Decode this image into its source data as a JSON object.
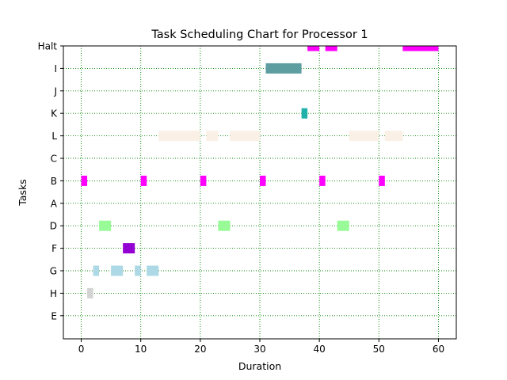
{
  "chart_data": {
    "type": "gantt",
    "title": "Task Scheduling Chart for Processor 1",
    "xlabel": "Duration",
    "ylabel": "Tasks",
    "xlim": [
      -3,
      63
    ],
    "xticks": [
      0,
      10,
      20,
      30,
      40,
      50,
      60
    ],
    "grid": true,
    "grid_color": "#008000",
    "tasks": [
      "Halt",
      "I",
      "J",
      "K",
      "L",
      "C",
      "B",
      "A",
      "D",
      "F",
      "G",
      "H",
      "E"
    ],
    "segments": [
      {
        "task": "Halt",
        "start": 38.0,
        "end": 40.0,
        "color": "#ff00ff"
      },
      {
        "task": "Halt",
        "start": 41.0,
        "end": 43.0,
        "color": "#ff00ff"
      },
      {
        "task": "Halt",
        "start": 54.0,
        "end": 60.0,
        "color": "#ff00ff"
      },
      {
        "task": "I",
        "start": 31.0,
        "end": 37.0,
        "color": "#5f9ea0"
      },
      {
        "task": "K",
        "start": 37.0,
        "end": 38.0,
        "color": "#20b2aa"
      },
      {
        "task": "L",
        "start": 13.0,
        "end": 20.0,
        "color": "#faf0e6"
      },
      {
        "task": "L",
        "start": 21.0,
        "end": 23.0,
        "color": "#faf0e6"
      },
      {
        "task": "L",
        "start": 25.0,
        "end": 30.0,
        "color": "#faf0e6"
      },
      {
        "task": "L",
        "start": 45.0,
        "end": 50.0,
        "color": "#faf0e6"
      },
      {
        "task": "L",
        "start": 51.0,
        "end": 54.0,
        "color": "#faf0e6"
      },
      {
        "task": "B",
        "start": 0.0,
        "end": 1.0,
        "color": "#ff00ff"
      },
      {
        "task": "B",
        "start": 10.0,
        "end": 11.0,
        "color": "#ff00ff"
      },
      {
        "task": "B",
        "start": 20.0,
        "end": 21.0,
        "color": "#ff00ff"
      },
      {
        "task": "B",
        "start": 30.0,
        "end": 31.0,
        "color": "#ff00ff"
      },
      {
        "task": "B",
        "start": 40.0,
        "end": 41.0,
        "color": "#ff00ff"
      },
      {
        "task": "B",
        "start": 50.0,
        "end": 51.0,
        "color": "#ff00ff"
      },
      {
        "task": "D",
        "start": 3.0,
        "end": 5.0,
        "color": "#98fb98"
      },
      {
        "task": "D",
        "start": 23.0,
        "end": 25.0,
        "color": "#98fb98"
      },
      {
        "task": "D",
        "start": 43.0,
        "end": 45.0,
        "color": "#98fb98"
      },
      {
        "task": "F",
        "start": 7.0,
        "end": 9.0,
        "color": "#9400d3"
      },
      {
        "task": "G",
        "start": 2.0,
        "end": 3.0,
        "color": "#add8e6"
      },
      {
        "task": "G",
        "start": 5.0,
        "end": 7.0,
        "color": "#add8e6"
      },
      {
        "task": "G",
        "start": 9.0,
        "end": 10.0,
        "color": "#add8e6"
      },
      {
        "task": "G",
        "start": 11.0,
        "end": 13.0,
        "color": "#add8e6"
      },
      {
        "task": "H",
        "start": 1.0,
        "end": 2.0,
        "color": "#d3d3d3"
      }
    ]
  }
}
